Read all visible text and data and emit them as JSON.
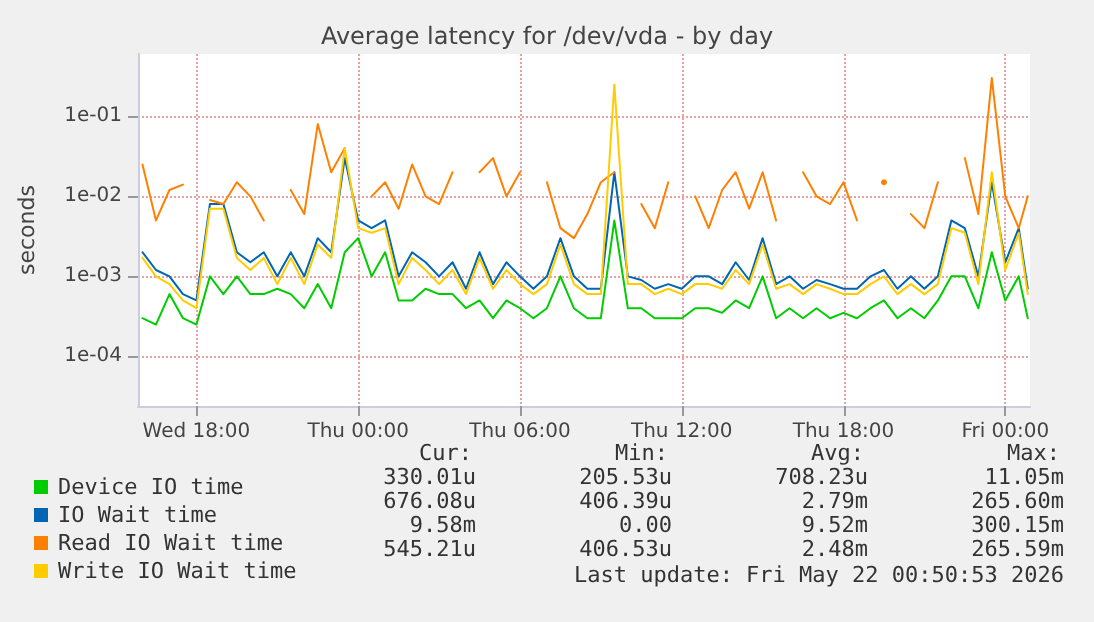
{
  "chart_data": {
    "type": "line",
    "title": "Average latency for /dev/vda - by day",
    "ylabel": "seconds",
    "x": [
      "2026-05-20T16:00",
      "2026-05-20T16:30",
      "2026-05-20T17:00",
      "2026-05-20T17:30",
      "2026-05-20T18:00",
      "2026-05-20T18:30",
      "2026-05-20T19:00",
      "2026-05-20T19:30",
      "2026-05-20T20:00",
      "2026-05-20T20:30",
      "2026-05-20T21:00",
      "2026-05-20T21:30",
      "2026-05-20T22:00",
      "2026-05-20T22:30",
      "2026-05-20T23:00",
      "2026-05-20T23:30",
      "2026-05-21T00:00",
      "2026-05-21T00:30",
      "2026-05-21T01:00",
      "2026-05-21T01:30",
      "2026-05-21T02:00",
      "2026-05-21T02:30",
      "2026-05-21T03:00",
      "2026-05-21T03:30",
      "2026-05-21T04:00",
      "2026-05-21T04:30",
      "2026-05-21T05:00",
      "2026-05-21T05:30",
      "2026-05-21T06:00",
      "2026-05-21T06:30",
      "2026-05-21T07:00",
      "2026-05-21T07:30",
      "2026-05-21T08:00",
      "2026-05-21T08:30",
      "2026-05-21T09:00",
      "2026-05-21T09:30",
      "2026-05-21T10:00",
      "2026-05-21T10:30",
      "2026-05-21T11:00",
      "2026-05-21T11:30",
      "2026-05-21T12:00",
      "2026-05-21T12:30",
      "2026-05-21T13:00",
      "2026-05-21T13:30",
      "2026-05-21T14:00",
      "2026-05-21T14:30",
      "2026-05-21T15:00",
      "2026-05-21T15:30",
      "2026-05-21T16:00",
      "2026-05-21T16:30",
      "2026-05-21T17:00",
      "2026-05-21T17:30",
      "2026-05-21T18:00",
      "2026-05-21T18:30",
      "2026-05-21T19:00",
      "2026-05-21T19:30",
      "2026-05-21T20:00",
      "2026-05-21T20:30",
      "2026-05-21T21:00",
      "2026-05-21T21:30",
      "2026-05-21T22:00",
      "2026-05-21T22:30",
      "2026-05-21T23:00",
      "2026-05-21T23:30",
      "2026-05-22T00:00",
      "2026-05-22T00:30",
      "2026-05-22T00:50"
    ],
    "series": [
      {
        "name": "Device IO time",
        "color": "#00cc00",
        "values": [
          0.0003,
          0.00025,
          0.0006,
          0.0003,
          0.00025,
          0.001,
          0.0006,
          0.001,
          0.0006,
          0.0006,
          0.0007,
          0.0006,
          0.0004,
          0.0008,
          0.0004,
          0.002,
          0.003,
          0.001,
          0.002,
          0.0005,
          0.0005,
          0.0007,
          0.0006,
          0.0006,
          0.0004,
          0.0005,
          0.0003,
          0.0005,
          0.0004,
          0.0003,
          0.0004,
          0.001,
          0.0004,
          0.0003,
          0.0003,
          0.005,
          0.0004,
          0.0004,
          0.0003,
          0.0003,
          0.0003,
          0.0004,
          0.0004,
          0.00035,
          0.0005,
          0.0004,
          0.001,
          0.0003,
          0.0004,
          0.0003,
          0.0004,
          0.0003,
          0.00035,
          0.0003,
          0.0004,
          0.0005,
          0.0003,
          0.0004,
          0.0003,
          0.0005,
          0.001,
          0.001,
          0.0004,
          0.002,
          0.0005,
          0.001,
          0.0003
        ]
      },
      {
        "name": "IO Wait time",
        "color": "#0066b3",
        "values": [
          0.002,
          0.0012,
          0.001,
          0.0006,
          0.0005,
          0.008,
          0.008,
          0.002,
          0.0015,
          0.002,
          0.001,
          0.002,
          0.001,
          0.003,
          0.002,
          0.03,
          0.005,
          0.004,
          0.005,
          0.001,
          0.002,
          0.0015,
          0.001,
          0.0015,
          0.0007,
          0.002,
          0.0008,
          0.0015,
          0.001,
          0.0007,
          0.001,
          0.003,
          0.001,
          0.0007,
          0.0007,
          0.02,
          0.001,
          0.0009,
          0.0007,
          0.0008,
          0.0007,
          0.001,
          0.001,
          0.0008,
          0.0015,
          0.0009,
          0.003,
          0.0008,
          0.001,
          0.0007,
          0.0009,
          0.0008,
          0.0007,
          0.0007,
          0.001,
          0.0012,
          0.0007,
          0.001,
          0.0007,
          0.001,
          0.005,
          0.004,
          0.001,
          0.015,
          0.0015,
          0.004,
          0.0007
        ]
      },
      {
        "name": "Read IO Wait time",
        "color": "#ff8000",
        "values": [
          0.025,
          0.005,
          0.012,
          0.014,
          null,
          0.009,
          0.008,
          0.015,
          0.01,
          0.005,
          null,
          0.012,
          0.006,
          0.08,
          0.02,
          0.04,
          null,
          0.01,
          0.015,
          0.007,
          0.025,
          0.01,
          0.008,
          0.02,
          null,
          0.02,
          0.03,
          0.01,
          0.02,
          null,
          0.015,
          0.004,
          0.003,
          0.006,
          0.015,
          0.02,
          null,
          0.008,
          0.004,
          0.015,
          null,
          0.01,
          0.004,
          0.012,
          0.02,
          0.007,
          0.02,
          0.005,
          null,
          0.02,
          0.01,
          0.008,
          0.015,
          0.005,
          null,
          0.015,
          null,
          0.006,
          0.004,
          0.015,
          null,
          0.03,
          0.006,
          0.3,
          0.01,
          0.004,
          0.01
        ]
      },
      {
        "name": "Write IO Wait time",
        "color": "#ffcc00",
        "values": [
          0.0017,
          0.001,
          0.0008,
          0.0005,
          0.0004,
          0.007,
          0.007,
          0.0017,
          0.0012,
          0.0017,
          0.0008,
          0.0017,
          0.0008,
          0.0025,
          0.0017,
          0.04,
          0.004,
          0.0035,
          0.004,
          0.0008,
          0.0017,
          0.0012,
          0.0008,
          0.0012,
          0.0006,
          0.0017,
          0.0007,
          0.0012,
          0.0008,
          0.0006,
          0.0008,
          0.0025,
          0.0008,
          0.0006,
          0.0006,
          0.25,
          0.0008,
          0.0008,
          0.0006,
          0.0007,
          0.0006,
          0.0008,
          0.0008,
          0.0007,
          0.0012,
          0.0008,
          0.0025,
          0.0007,
          0.0008,
          0.0006,
          0.0008,
          0.0007,
          0.0006,
          0.0006,
          0.0008,
          0.001,
          0.0006,
          0.0008,
          0.0006,
          0.0008,
          0.004,
          0.0035,
          0.0008,
          0.02,
          0.0012,
          0.0035,
          0.0006
        ]
      }
    ],
    "xlim": [
      "2026-05-20T15:50",
      "2026-05-22T00:55"
    ],
    "xticks": [
      {
        "value": "2026-05-20T18:00",
        "label": "Wed 18:00"
      },
      {
        "value": "2026-05-21T00:00",
        "label": "Thu 00:00"
      },
      {
        "value": "2026-05-21T06:00",
        "label": "Thu 06:00"
      },
      {
        "value": "2026-05-21T12:00",
        "label": "Thu 12:00"
      },
      {
        "value": "2026-05-21T18:00",
        "label": "Thu 18:00"
      },
      {
        "value": "2026-05-22T00:00",
        "label": "Fri 00:00"
      }
    ],
    "ylim": [
      2.4e-05,
      0.6
    ],
    "yticks": [
      {
        "value": 0.0001,
        "label": "1e-04"
      },
      {
        "value": 0.001,
        "label": "1e-03"
      },
      {
        "value": 0.01,
        "label": "1e-02"
      },
      {
        "value": 0.1,
        "label": "1e-01"
      }
    ],
    "log": "y",
    "grid": true,
    "legend": "bottom left",
    "marker": "none",
    "line_style": "solid",
    "annotations": [
      "Cur:",
      "Min:",
      "Avg:",
      "Max:",
      "330.01u",
      "205.53u",
      "708.23u",
      "11.05m",
      "676.08u",
      "406.39u",
      "2.79m",
      "265.60m",
      "9.58m",
      "0.00",
      "9.52m",
      "300.15m",
      "545.21u",
      "406.53u",
      "2.48m",
      "265.59m",
      "Last update: Fri May 22 00:50:53 2026"
    ]
  }
}
